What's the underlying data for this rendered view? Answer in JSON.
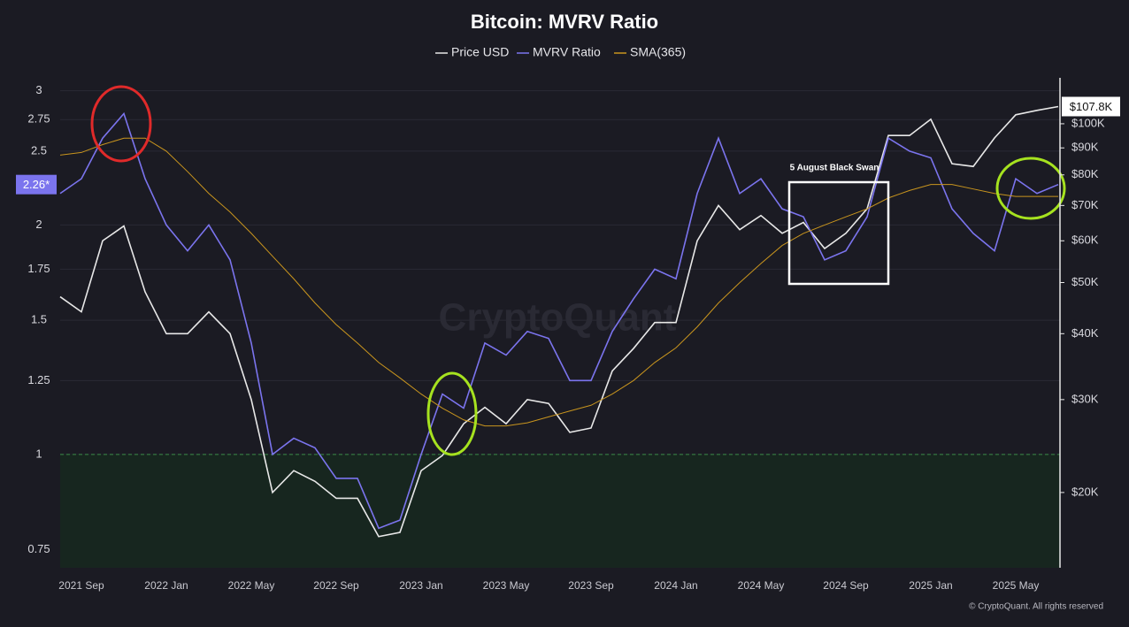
{
  "chart_data": {
    "type": "line",
    "title": "Bitcoin: MVRV Ratio",
    "x": [
      "2021-08",
      "2021-09",
      "2021-10",
      "2021-11",
      "2021-12",
      "2022-01",
      "2022-02",
      "2022-03",
      "2022-04",
      "2022-05",
      "2022-06",
      "2022-07",
      "2022-08",
      "2022-09",
      "2022-10",
      "2022-11",
      "2022-12",
      "2023-01",
      "2023-02",
      "2023-03",
      "2023-04",
      "2023-05",
      "2023-06",
      "2023-07",
      "2023-08",
      "2023-09",
      "2023-10",
      "2023-11",
      "2023-12",
      "2024-01",
      "2024-02",
      "2024-03",
      "2024-04",
      "2024-05",
      "2024-06",
      "2024-07",
      "2024-08",
      "2024-09",
      "2024-10",
      "2024-11",
      "2024-12",
      "2025-01",
      "2025-02",
      "2025-03",
      "2025-04",
      "2025-05",
      "2025-06",
      "2025-07"
    ],
    "xticks": [
      {
        "value": "2021-09",
        "label": "2021 Sep"
      },
      {
        "value": "2022-01",
        "label": "2022 Jan"
      },
      {
        "value": "2022-05",
        "label": "2022 May"
      },
      {
        "value": "2022-09",
        "label": "2022 Sep"
      },
      {
        "value": "2023-01",
        "label": "2023 Jan"
      },
      {
        "value": "2023-05",
        "label": "2023 May"
      },
      {
        "value": "2023-09",
        "label": "2023 Sep"
      },
      {
        "value": "2024-01",
        "label": "2024 Jan"
      },
      {
        "value": "2024-05",
        "label": "2024 May"
      },
      {
        "value": "2024-09",
        "label": "2024 Sep"
      },
      {
        "value": "2025-01",
        "label": "2025 Jan"
      },
      {
        "value": "2025-05",
        "label": "2025 May"
      }
    ],
    "series": [
      {
        "name": "Price USD",
        "color": "#e8e8e8",
        "axis": "y2",
        "last_label": "$107.8K",
        "values": [
          47000,
          44000,
          60000,
          64000,
          48000,
          40000,
          40000,
          44000,
          40000,
          30000,
          20000,
          22000,
          21000,
          19500,
          19500,
          16500,
          16800,
          22000,
          23500,
          27000,
          29000,
          27000,
          30000,
          29500,
          26000,
          26500,
          34000,
          37500,
          42000,
          42000,
          60000,
          70000,
          63000,
          67000,
          62000,
          65000,
          58000,
          62000,
          69000,
          95000,
          95000,
          102000,
          84000,
          83000,
          94000,
          104000,
          106000,
          107800
        ]
      },
      {
        "name": "MVRV Ratio",
        "color": "#7b74ee",
        "last_label": "2.26*",
        "values": [
          2.2,
          2.3,
          2.6,
          2.8,
          2.3,
          2.0,
          1.85,
          2.0,
          1.8,
          1.4,
          1.0,
          1.05,
          1.02,
          0.93,
          0.93,
          0.8,
          0.82,
          1.0,
          1.2,
          1.15,
          1.4,
          1.35,
          1.45,
          1.42,
          1.25,
          1.25,
          1.45,
          1.6,
          1.75,
          1.7,
          2.2,
          2.6,
          2.2,
          2.3,
          2.1,
          2.05,
          1.8,
          1.85,
          2.05,
          2.6,
          2.5,
          2.45,
          2.1,
          1.95,
          1.85,
          2.3,
          2.2,
          2.26
        ]
      },
      {
        "name": "SMA(365)",
        "color": "#c9951e",
        "values": [
          2.47,
          2.49,
          2.55,
          2.6,
          2.6,
          2.5,
          2.35,
          2.2,
          2.08,
          1.95,
          1.82,
          1.7,
          1.58,
          1.48,
          1.4,
          1.32,
          1.26,
          1.2,
          1.15,
          1.11,
          1.09,
          1.09,
          1.1,
          1.12,
          1.14,
          1.16,
          1.2,
          1.25,
          1.32,
          1.38,
          1.47,
          1.58,
          1.68,
          1.78,
          1.88,
          1.95,
          2.0,
          2.05,
          2.1,
          2.17,
          2.22,
          2.26,
          2.26,
          2.23,
          2.2,
          2.18,
          2.18,
          2.18
        ]
      }
    ],
    "ylim": [
      0.71,
      3.12
    ],
    "yticks": [
      0.75,
      1,
      1.25,
      1.5,
      1.75,
      2,
      2.5,
      2.75,
      3
    ],
    "y2lim": [
      14400,
      122200
    ],
    "y2ticks": [
      {
        "value": 20000,
        "label": "$20K"
      },
      {
        "value": 30000,
        "label": "$30K"
      },
      {
        "value": 40000,
        "label": "$40K"
      },
      {
        "value": 50000,
        "label": "$50K"
      },
      {
        "value": 60000,
        "label": "$60K"
      },
      {
        "value": 70000,
        "label": "$70K"
      },
      {
        "value": 80000,
        "label": "$80K"
      },
      {
        "value": 90000,
        "label": "$90K"
      },
      {
        "value": 100000,
        "label": "$100K"
      }
    ],
    "log_scale": true,
    "grid": true,
    "threshold": 1,
    "annotation": "5 August Black Swan",
    "watermark": "CryptoQuant",
    "copyright": "© CryptoQuant. All rights reserved"
  }
}
